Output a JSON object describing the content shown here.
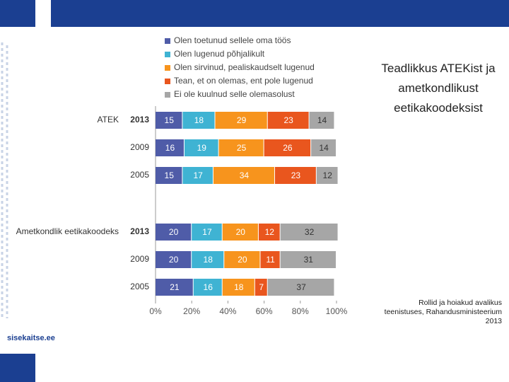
{
  "chart_data": {
    "type": "stacked-bar-horizontal",
    "title": "Teadlikkus ATEKist ja ametkondlikust eetikakoodeksist",
    "source": "Rollid ja hoiakud avalikus teenistuses, Rahandusministeerium 2013",
    "group_labels": [
      "ATEK",
      null,
      null,
      "Ametkondlik eetikakoodeks",
      null,
      null
    ],
    "categories": [
      "2013",
      "2009",
      "2005",
      "2013",
      "2009",
      "2005"
    ],
    "series": [
      {
        "name": "Olen toetunud sellele oma töös",
        "color": "#4f5ca8",
        "label_color": "#ffffff",
        "values": [
          15,
          16,
          15,
          20,
          20,
          21
        ]
      },
      {
        "name": "Olen lugenud põhjalikult",
        "color": "#3fb3d3",
        "label_color": "#ffffff",
        "values": [
          18,
          19,
          17,
          17,
          18,
          16
        ]
      },
      {
        "name": "Olen sirvinud, pealiskaudselt lugenud",
        "color": "#f7941d",
        "label_color": "#ffffff",
        "values": [
          29,
          25,
          34,
          20,
          20,
          18
        ]
      },
      {
        "name": "Tean, et on olemas, ent pole lugenud",
        "color": "#e9561e",
        "label_color": "#ffffff",
        "values": [
          23,
          26,
          23,
          12,
          11,
          7
        ]
      },
      {
        "name": "Ei ole kuulnud selle olemasolust",
        "color": "#a6a6a6",
        "label_color": "#333333",
        "values": [
          14,
          14,
          12,
          32,
          31,
          37
        ]
      }
    ],
    "xlim": [
      0,
      100
    ],
    "xticks": [
      {
        "value": 0,
        "label": "0%"
      },
      {
        "value": 20,
        "label": "20%"
      },
      {
        "value": 40,
        "label": "40%"
      },
      {
        "value": 60,
        "label": "60%"
      },
      {
        "value": 80,
        "label": "80%"
      },
      {
        "value": 100,
        "label": "100%"
      }
    ],
    "legend": "top"
  },
  "footer": {
    "logo": "sisekaitse.ee"
  }
}
